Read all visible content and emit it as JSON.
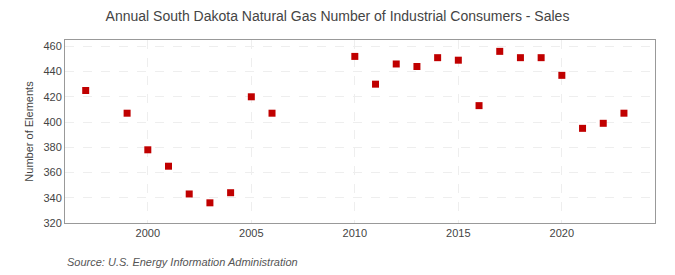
{
  "chart_data": {
    "type": "scatter",
    "title": "Annual South Dakota Natural Gas Number of Industrial Consumers - Sales",
    "ylabel": "Number of Elements",
    "annotations": [
      "Source: U.S. Energy Information Administration"
    ],
    "x": [
      1997,
      1999,
      2000,
      2001,
      2002,
      2003,
      2004,
      2005,
      2006,
      2010,
      2011,
      2012,
      2013,
      2014,
      2015,
      2016,
      2017,
      2018,
      2019,
      2020,
      2021,
      2022,
      2023
    ],
    "values": [
      425,
      407,
      378,
      365,
      343,
      336,
      344,
      420,
      407,
      452,
      430,
      446,
      444,
      451,
      449,
      413,
      456,
      451,
      451,
      437,
      395,
      399,
      407
    ],
    "color": "#c00000",
    "marker": "square",
    "xlim": [
      1996,
      2024.5
    ],
    "ylim": [
      320,
      465
    ],
    "xticks": [
      2000,
      2005,
      2010,
      2015,
      2020
    ],
    "yticks": [
      320,
      340,
      360,
      380,
      400,
      420,
      440,
      460
    ],
    "grid": true
  }
}
